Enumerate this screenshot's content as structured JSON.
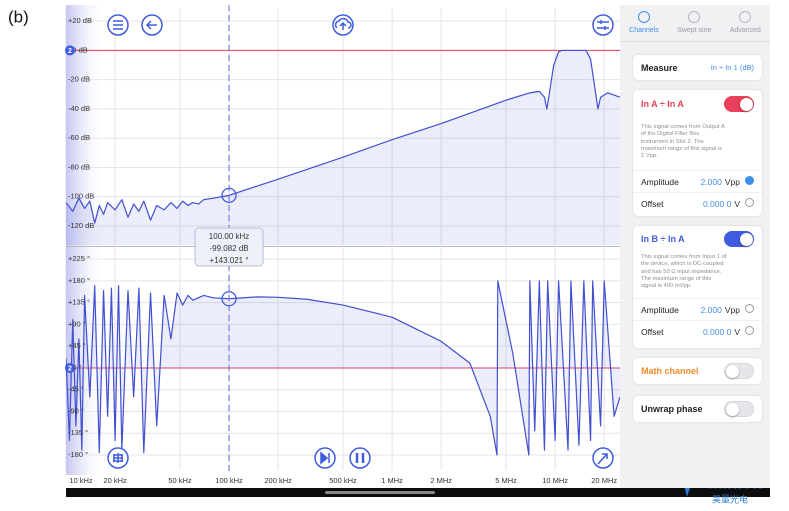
{
  "figure_label": "(b)",
  "chart_data": [
    {
      "type": "line",
      "color": "#4050d0",
      "fill": "floor",
      "reference_line": 0,
      "reference_label": "2",
      "grid": true,
      "xscale": "log",
      "xlim": [
        10000,
        25000000
      ],
      "ylim": [
        -133,
        29
      ],
      "yticks": [
        {
          "value": 20,
          "label": "+20 dB"
        },
        {
          "value": 0,
          "label": "+0 dB"
        },
        {
          "value": -20,
          "label": "-20 dB"
        },
        {
          "value": -40,
          "label": "-40 dB"
        },
        {
          "value": -60,
          "label": "-60 dB"
        },
        {
          "value": -80,
          "label": "-80 dB"
        },
        {
          "value": -100,
          "label": "-100 dB"
        },
        {
          "value": -120,
          "label": "-120 dB"
        }
      ],
      "x": [
        10000,
        11000,
        12000,
        13000,
        14000,
        15000,
        16000,
        17000,
        18000,
        20000,
        22000,
        24000,
        26000,
        28000,
        30000,
        33000,
        36000,
        40000,
        44000,
        48000,
        52000,
        56000,
        60000,
        65000,
        70000,
        80000,
        90000,
        100000,
        200000,
        500000,
        1000000,
        2000000,
        5000000,
        7000000,
        8000000,
        8600000,
        8900000,
        9200000,
        9800000,
        10500000,
        11000000,
        15500000,
        16500000,
        17500000,
        18300000,
        19000000,
        21000000,
        25000000
      ],
      "series": [
        {
          "color": "#4050d0",
          "values": [
            -104,
            -110,
            -101,
            -108,
            -103,
            -118,
            -106,
            -112,
            -104,
            -109,
            -102,
            -114,
            -105,
            -110,
            -103,
            -116,
            -106,
            -109,
            -104,
            -108,
            -103,
            -106,
            -104,
            -105,
            -102,
            -101,
            -100,
            -99.082,
            -88,
            -73,
            -61,
            -50,
            -34,
            -29,
            -28,
            -32,
            -40,
            -30,
            -10,
            -1,
            0,
            0,
            -6,
            -25,
            -40,
            -32,
            -29,
            -32
          ]
        }
      ]
    },
    {
      "type": "line",
      "color": "#4050d0",
      "fill": "reference",
      "reference_line": 0,
      "reference_label": "2",
      "grid": true,
      "xscale": "log",
      "xlim": [
        10000,
        25000000
      ],
      "ylim": [
        -211,
        248
      ],
      "yticks": [
        {
          "value": 225,
          "label": "+225 °"
        },
        {
          "value": 180,
          "label": "+180 °"
        },
        {
          "value": 135,
          "label": "+135 °"
        },
        {
          "value": 90,
          "label": "+90 °"
        },
        {
          "value": 45,
          "label": "+45 °"
        },
        {
          "value": 0,
          "label": "+0 °"
        },
        {
          "value": -45,
          "label": "-45 °"
        },
        {
          "value": -90,
          "label": "-90 °"
        },
        {
          "value": -135,
          "label": "-135 °"
        },
        {
          "value": -180,
          "label": "-180 °"
        }
      ],
      "xticks": [
        {
          "value": 10000,
          "label": "10 kHz"
        },
        {
          "value": 20000,
          "label": "20 kHz"
        },
        {
          "value": 50000,
          "label": "50 kHz"
        },
        {
          "value": 100000,
          "label": "100 kHz"
        },
        {
          "value": 200000,
          "label": "200 kHz"
        },
        {
          "value": 500000,
          "label": "500 kHz"
        },
        {
          "value": 1000000,
          "label": "1 MHz"
        },
        {
          "value": 2000000,
          "label": "2 MHz"
        },
        {
          "value": 5000000,
          "label": "5 MHz"
        },
        {
          "value": 10000000,
          "label": "10 MHz"
        },
        {
          "value": 20000000,
          "label": "20 MHz"
        }
      ],
      "x": [
        10000,
        10500,
        11000,
        11500,
        12000,
        12500,
        13000,
        14000,
        15000,
        16000,
        17000,
        18000,
        19000,
        20000,
        21000,
        22000,
        24000,
        26000,
        28000,
        30000,
        33000,
        36000,
        40000,
        44000,
        48000,
        52000,
        56000,
        60000,
        70000,
        80000,
        100000,
        150000,
        200000,
        300000,
        500000,
        1000000,
        2000000,
        3000000,
        4000000,
        4400000,
        4450000,
        5500000,
        6900000,
        7000000,
        7500000,
        8000000,
        8600000,
        9000000,
        10000000,
        10500000,
        12000000,
        12500000,
        14000000,
        15000000,
        16500000,
        17000000,
        19000000,
        20000000,
        23000000,
        25000000
      ],
      "series": [
        {
          "color": "#4050d0",
          "values": [
            20,
            -150,
            100,
            -120,
            60,
            -170,
            150,
            -60,
            170,
            -175,
            160,
            -100,
            165,
            -150,
            170,
            -170,
            160,
            -60,
            165,
            -175,
            155,
            -120,
            150,
            60,
            155,
            130,
            150,
            140,
            150,
            145,
            143.021,
            147,
            146,
            142,
            130,
            105,
            55,
            10,
            -100,
            -180,
            180,
            30,
            -180,
            180,
            -130,
            180,
            -170,
            180,
            -150,
            180,
            -170,
            180,
            -160,
            180,
            -150,
            180,
            -120,
            180,
            -100,
            -60
          ]
        }
      ]
    }
  ],
  "cursor": {
    "x": 100000,
    "labels": [
      "100.00 kHz",
      "-99.082 dB",
      "+143.021 °"
    ]
  },
  "sidebar": {
    "tabs": [
      "Channels",
      "Swept sine",
      "Advanced"
    ],
    "measure": {
      "label": "Measure",
      "value": "In ÷ In 1 (dB)"
    },
    "channels": [
      {
        "title": "In A ÷ In A",
        "enabled": true,
        "description": "This signal comes from Output A of the Digital Filter Box instrument in Slot 2. The maximum range of this signal is 2 Vpp.",
        "amplitude": {
          "label": "Amplitude",
          "value": "2.000",
          "unit": "Vpp"
        },
        "offset": {
          "label": "Offset",
          "value": "0.000 0",
          "unit": "V"
        }
      },
      {
        "title": "In B ÷ In A",
        "enabled": true,
        "description": "This signal comes from Input 1 of the device, which is DC-coupled and has 50 Ω input impedance. The maximum range of this signal is 400 mVpp.",
        "amplitude": {
          "label": "Amplitude",
          "value": "2.000",
          "unit": "Vpp"
        },
        "offset": {
          "label": "Offset",
          "value": "0.000 0",
          "unit": "V"
        }
      }
    ],
    "toggles": [
      {
        "label": "Math channel",
        "on": false
      },
      {
        "label": "Unwrap phase",
        "on": false
      }
    ]
  },
  "watermark": {
    "brand": "aunion",
    "subtitle": "昊量光电"
  }
}
